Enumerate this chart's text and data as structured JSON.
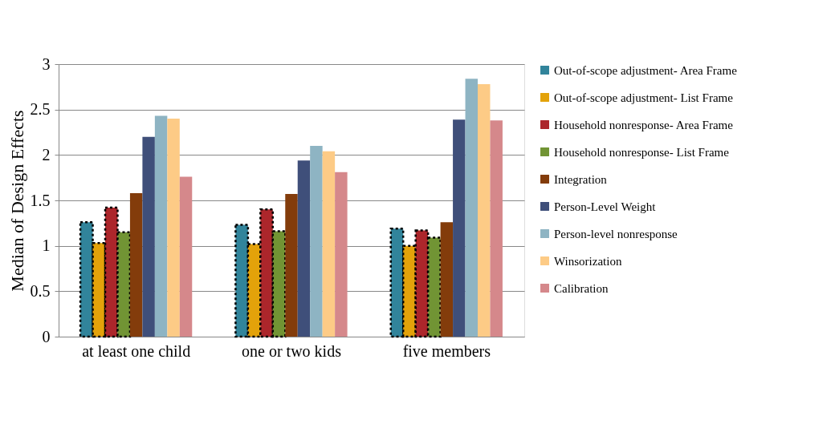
{
  "chart_data": {
    "type": "bar",
    "ylabel": "Median of Design Effects",
    "categories": [
      "at least one child",
      "one or two kids",
      "five members"
    ],
    "series": [
      {
        "name": "Out-of-scope adjustment- Area Frame",
        "color": "#31849b",
        "values": [
          1.26,
          1.23,
          1.19
        ],
        "line_style": "dotted"
      },
      {
        "name": "Out-of-scope adjustment- List Frame",
        "color": "#e3a20a",
        "values": [
          1.03,
          1.02,
          1.0
        ],
        "line_style": "dotted"
      },
      {
        "name": "Household nonresponse- Area Frame",
        "color": "#ac262b",
        "values": [
          1.42,
          1.4,
          1.17
        ],
        "line_style": "dotted"
      },
      {
        "name": "Household nonresponse- List Frame",
        "color": "#719434",
        "values": [
          1.15,
          1.16,
          1.09
        ],
        "line_style": "dotted"
      },
      {
        "name": "Integration",
        "color": "#833c0b",
        "values": [
          1.58,
          1.57,
          1.26
        ]
      },
      {
        "name": "Person-Level Weight",
        "color": "#3f4f7a",
        "values": [
          2.2,
          1.94,
          2.39
        ]
      },
      {
        "name": "Person-level nonresponse",
        "color": "#8eb4c3",
        "values": [
          2.43,
          2.1,
          2.84
        ]
      },
      {
        "name": " Winsorization",
        "color": "#fdcb86",
        "values": [
          2.4,
          2.04,
          2.78
        ]
      },
      {
        "name": "Calibration",
        "color": "#d5888b",
        "values": [
          1.76,
          1.81,
          2.38
        ]
      }
    ],
    "ylim": [
      0,
      3
    ],
    "yticks": [
      0,
      0.5,
      1,
      1.5,
      2,
      2.5,
      3
    ],
    "grid": "y",
    "legend": "right"
  }
}
